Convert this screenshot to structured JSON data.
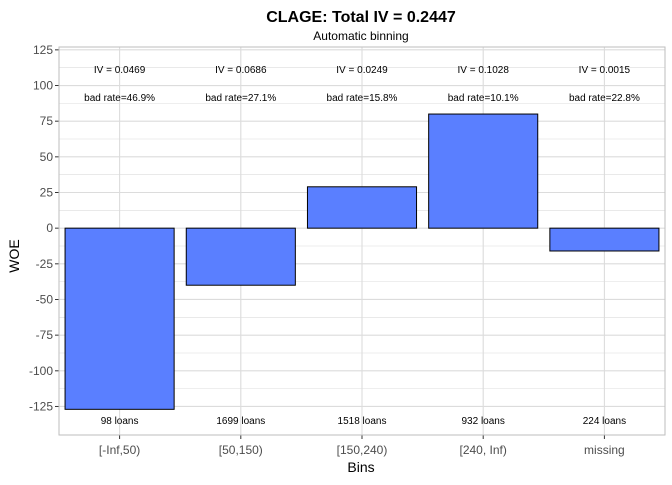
{
  "chart_data": {
    "type": "bar",
    "title": "CLAGE: Total IV = 0.2447",
    "subtitle": "Automatic binning",
    "xlabel": "Bins",
    "ylabel": "WOE",
    "ylim": [
      -145,
      127
    ],
    "yticks": [
      -125,
      -100,
      -75,
      -50,
      -25,
      0,
      25,
      50,
      75,
      100,
      125
    ],
    "categories": [
      "[-Inf,50)",
      "[50,150)",
      "[150,240)",
      "[240, Inf)",
      "missing"
    ],
    "values": [
      -127,
      -40,
      29,
      80,
      -16
    ],
    "iv_labels": [
      "IV = 0.0469",
      "IV = 0.0686",
      "IV = 0.0249",
      "IV = 0.1028",
      "IV = 0.0015"
    ],
    "bad_rate_labels": [
      "bad rate=46.9%",
      "bad rate=27.1%",
      "bad rate=15.8%",
      "bad rate=10.1%",
      "bad rate=22.8%"
    ],
    "count_labels": [
      "98 loans",
      "1699 loans",
      "1518 loans",
      "932 loans",
      "224 loans"
    ],
    "grid": true,
    "colors": {
      "bar_fill": "#5A7FFF",
      "bar_stroke": "#000000",
      "grid": "#DCDCDC",
      "panel_border": "#BEBEBE"
    }
  }
}
